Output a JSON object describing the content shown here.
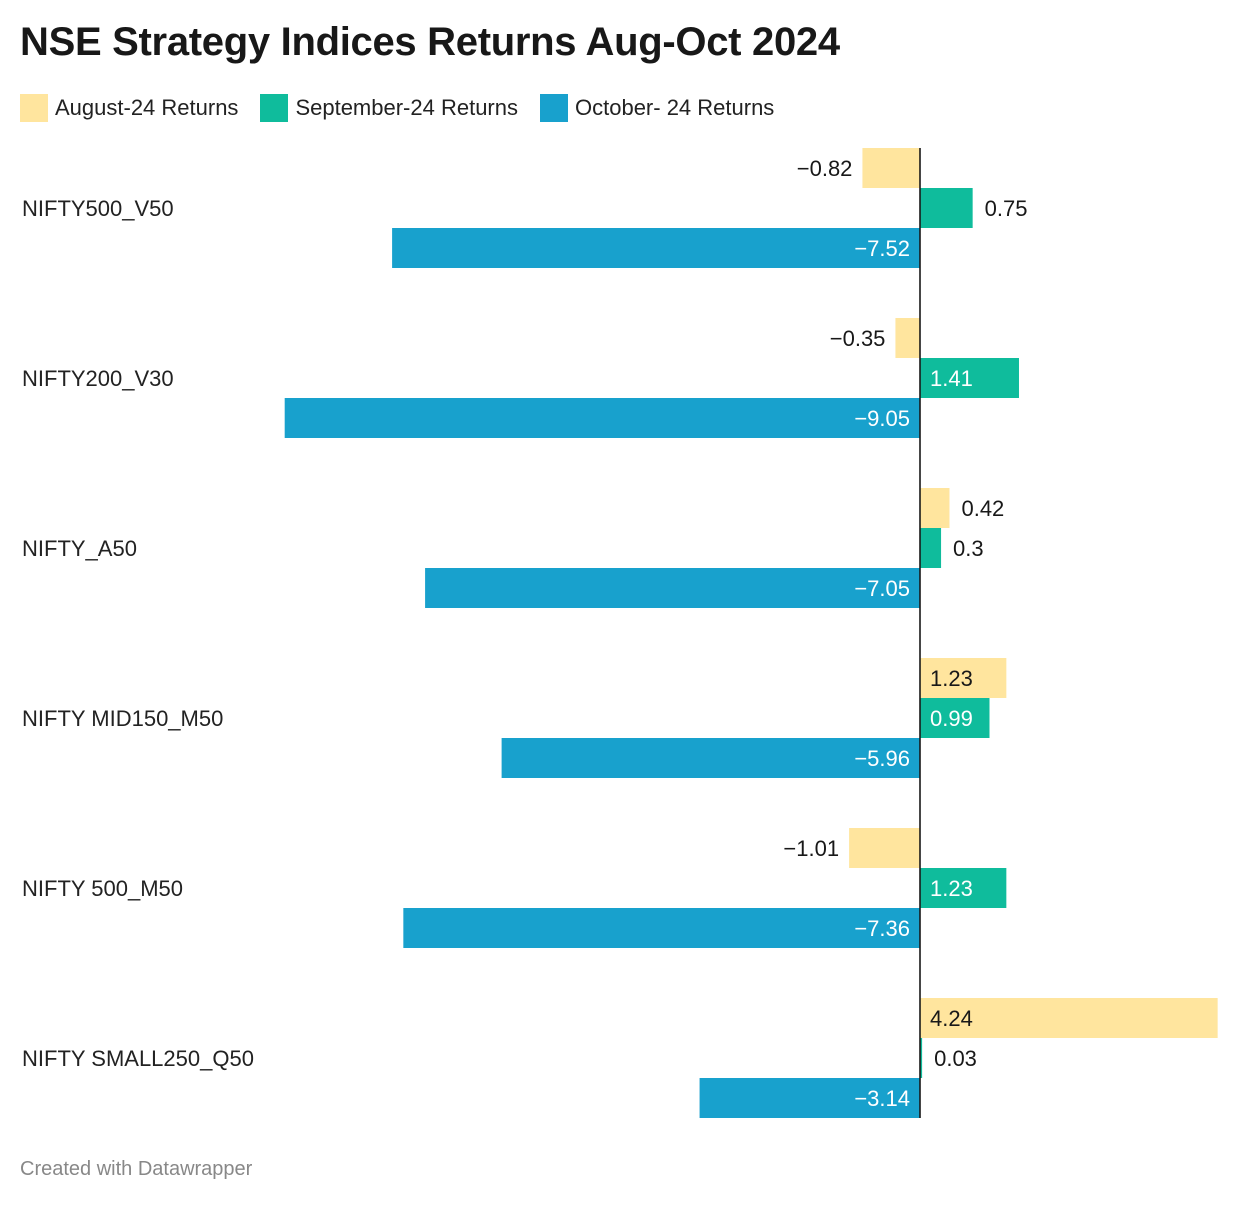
{
  "chart_data": {
    "type": "bar",
    "orientation": "horizontal",
    "title": "NSE Strategy Indices Returns Aug-Oct 2024",
    "categories": [
      "NIFTY500_V50",
      "NIFTY200_V30",
      "NIFTY_A50",
      "NIFTY MID150_M50",
      "NIFTY 500_M50",
      "NIFTY SMALL250_Q50"
    ],
    "series": [
      {
        "name": "August-24 Returns",
        "color": "#ffe59e",
        "values": [
          -0.82,
          -0.35,
          0.42,
          1.23,
          -1.01,
          4.24
        ],
        "labels": [
          "−0.82",
          "−0.35",
          "0.42",
          "1.23",
          "−1.01",
          "4.24"
        ]
      },
      {
        "name": "September-24 Returns",
        "color": "#0fbc9c",
        "values": [
          0.75,
          1.41,
          0.3,
          0.99,
          1.23,
          0.03
        ],
        "labels": [
          "0.75",
          "1.41",
          "0.3",
          "0.99",
          "1.23",
          "0.03"
        ]
      },
      {
        "name": "October- 24 Returns",
        "color": "#18a1cd",
        "values": [
          -7.52,
          -9.05,
          -7.05,
          -5.96,
          -7.36,
          -3.14
        ],
        "labels": [
          "−7.52",
          "−9.05",
          "−7.05",
          "−5.96",
          "−7.36",
          "−3.14"
        ]
      }
    ],
    "xlim": [
      -9.05,
      4.24
    ],
    "xlabel": "",
    "ylabel": "",
    "legend": "top-left"
  },
  "footer": "Created with Datawrapper"
}
